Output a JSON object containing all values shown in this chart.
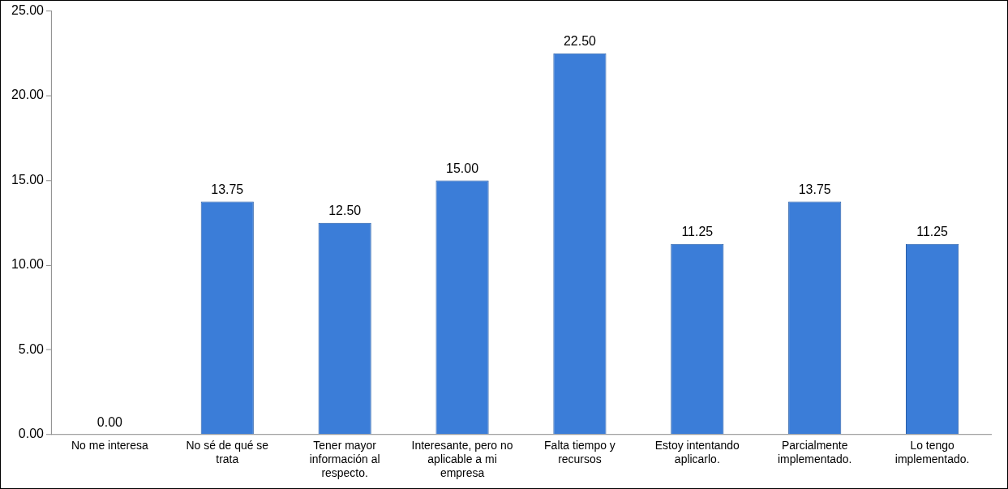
{
  "chart_data": {
    "type": "bar",
    "categories": [
      "No me interesa",
      "No sé de qué se trata",
      "Tener mayor información al respecto.",
      "Interesante, pero no aplicable a mi empresa",
      "Falta tiempo y recursos",
      "Estoy intentando aplicarlo.",
      "Parcialmente implementado.",
      "Lo tengo implementado."
    ],
    "values": [
      0,
      13.75,
      12.5,
      15,
      22.5,
      11.25,
      13.75,
      11.25
    ],
    "value_labels": [
      "0.00",
      "13.75",
      "12.50",
      "15.00",
      "22.50",
      "11.25",
      "13.75",
      "11.25"
    ],
    "color": "#3b7dd8",
    "ylim": [
      0,
      25
    ],
    "yticks": [
      {
        "value": 0,
        "label": "0.00"
      },
      {
        "value": 5,
        "label": "5.00"
      },
      {
        "value": 10,
        "label": "10.00"
      },
      {
        "value": 15,
        "label": "15.00"
      },
      {
        "value": 20,
        "label": "20.00"
      },
      {
        "value": 25,
        "label": "25.00"
      }
    ],
    "grid": false,
    "legend": false
  }
}
